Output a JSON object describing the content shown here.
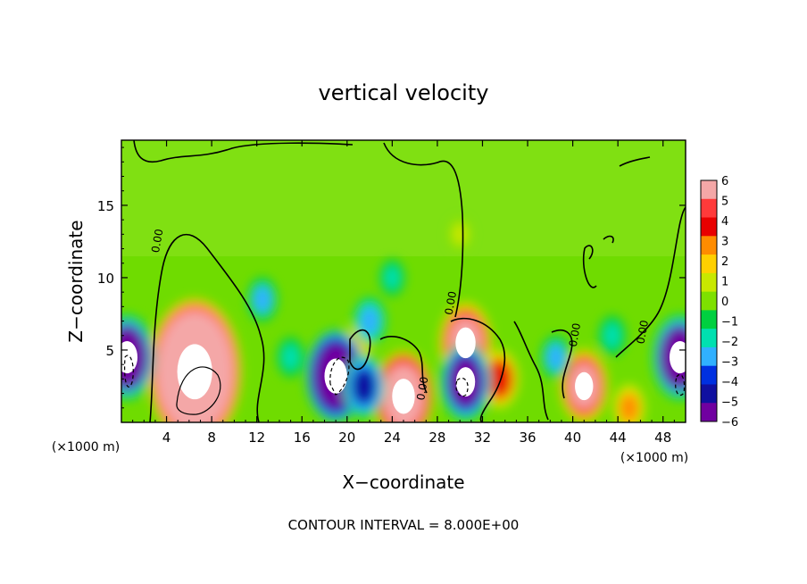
{
  "chart_data": {
    "type": "heatmap",
    "title": "vertical velocity",
    "xlabel": "X−coordinate",
    "ylabel": "Z−coordinate",
    "x_unit": "(×1000 m)",
    "y_unit": "(×1000 m)",
    "footer": "CONTOUR INTERVAL = 8.000E+00",
    "xlim": [
      0,
      50
    ],
    "ylim": [
      0,
      19.5
    ],
    "x_ticks": [
      4,
      8,
      12,
      16,
      20,
      24,
      28,
      32,
      36,
      40,
      44,
      48
    ],
    "y_ticks": [
      5,
      10,
      15
    ],
    "colorbar": {
      "range": [
        -6,
        6
      ],
      "labels": [
        "6",
        "5",
        "4",
        "3",
        "2",
        "1",
        "0",
        "−1",
        "−2",
        "−3",
        "−4",
        "−5",
        "−6"
      ],
      "colors": [
        "#f4a7a7",
        "#ff3a3a",
        "#e80000",
        "#ff8c00",
        "#ffd000",
        "#c8e800",
        "#7ee000",
        "#00d040",
        "#00e0b0",
        "#30b0ff",
        "#0030e0",
        "#1010a0",
        "#7000a0"
      ]
    },
    "contour_labels": [
      {
        "text": "0.00",
        "x": 3.5,
        "z": 12.5
      },
      {
        "text": "0.00",
        "x": 29.5,
        "z": 8.2
      },
      {
        "text": "0.00",
        "x": 27.0,
        "z": 2.3
      },
      {
        "text": "0.00",
        "x": 40.5,
        "z": 6.0
      },
      {
        "text": "0.00",
        "x": 46.5,
        "z": 6.2
      }
    ],
    "features": [
      {
        "x": 6.5,
        "z": 3.5,
        "w": 16.0
      },
      {
        "x": 25.0,
        "z": 1.8,
        "w": 9.0
      },
      {
        "x": 30.5,
        "z": 5.5,
        "w": 7.5
      },
      {
        "x": 41.0,
        "z": 2.5,
        "w": 6.5
      },
      {
        "x": 33.5,
        "z": 3.0,
        "w": 4.5
      },
      {
        "x": 45.0,
        "z": 1.0,
        "w": 3.0
      },
      {
        "x": 20.8,
        "z": 5.2,
        "w": 2.5
      },
      {
        "x": 19.0,
        "z": 3.2,
        "w": -9.0
      },
      {
        "x": 0.5,
        "z": 4.5,
        "w": -8.0
      },
      {
        "x": 49.5,
        "z": 4.5,
        "w": -8.0
      },
      {
        "x": 30.5,
        "z": 2.8,
        "w": -7.0
      },
      {
        "x": 12.5,
        "z": 8.5,
        "w": -2.5
      },
      {
        "x": 15.0,
        "z": 4.5,
        "w": -2.0
      },
      {
        "x": 22.0,
        "z": 7.0,
        "w": -3.0
      },
      {
        "x": 38.5,
        "z": 4.5,
        "w": -2.5
      },
      {
        "x": 43.5,
        "z": 6.0,
        "w": -2.0
      },
      {
        "x": 21.5,
        "z": 2.5,
        "w": -5.0
      },
      {
        "x": 24.0,
        "z": 10.0,
        "w": -1.5
      },
      {
        "x": 30.0,
        "z": 13.0,
        "w": 1.0
      }
    ]
  }
}
